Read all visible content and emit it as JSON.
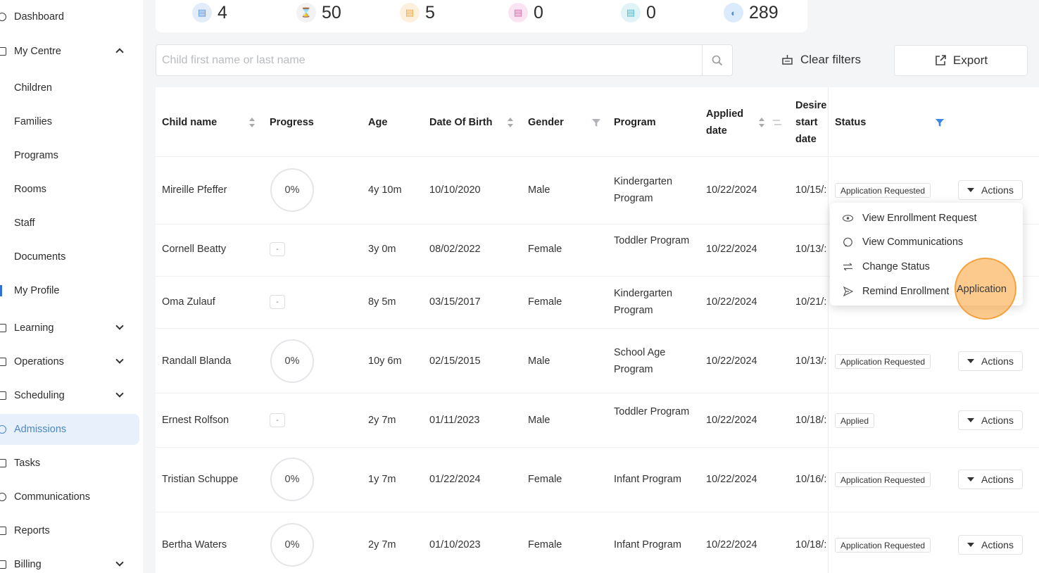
{
  "sidebar": {
    "items": [
      {
        "label": "Dashboard",
        "icon": "dashboard-icon"
      },
      {
        "label": "My Centre",
        "icon": "home-icon"
      },
      {
        "label": "Children"
      },
      {
        "label": "Families"
      },
      {
        "label": "Programs"
      },
      {
        "label": "Rooms"
      },
      {
        "label": "Staff"
      },
      {
        "label": "Documents"
      },
      {
        "label": "My Profile"
      },
      {
        "label": "Learning",
        "icon": "book-icon"
      },
      {
        "label": "Operations",
        "icon": "operations-icon"
      },
      {
        "label": "Scheduling",
        "icon": "calendar-icon"
      },
      {
        "label": "Admissions",
        "icon": "admissions-icon",
        "active": true
      },
      {
        "label": "Tasks",
        "icon": "tasks-icon"
      },
      {
        "label": "Communications",
        "icon": "communications-icon"
      },
      {
        "label": "Reports",
        "icon": "reports-icon"
      },
      {
        "label": "Billing",
        "icon": "billing-icon"
      }
    ]
  },
  "stats": [
    {
      "value": "4",
      "icon": "document-icon",
      "color": "#5b8fd9",
      "bg": "#e3edfa"
    },
    {
      "value": "50",
      "icon": "hourglass-icon",
      "color": "#666666",
      "bg": "#f2f2f2"
    },
    {
      "value": "5",
      "icon": "pending-doc-icon",
      "color": "#e8a84a",
      "bg": "#fdf1de"
    },
    {
      "value": "0",
      "icon": "rejected-doc-icon",
      "color": "#d46aa8",
      "bg": "#fbe4f1"
    },
    {
      "value": "0",
      "icon": "approved-doc-icon",
      "color": "#52b7c9",
      "bg": "#e0f4f7"
    },
    {
      "value": "289",
      "icon": "total-icon",
      "color": "#4a8fd8",
      "bg": "#dcebfb"
    }
  ],
  "search": {
    "placeholder": "Child first name or last name",
    "value": ""
  },
  "filters": {
    "clear_label": "Clear filters",
    "export_label": "Export"
  },
  "table": {
    "headers": {
      "child_name": "Child name",
      "progress": "Progress",
      "age": "Age",
      "dob": "Date Of Birth",
      "gender": "Gender",
      "program": "Program",
      "applied_date_l1": "Applied",
      "applied_date_l2": "date",
      "desired_l1": "Desire",
      "desired_l2": "start",
      "desired_l3": "date",
      "status": "Status"
    },
    "rows": [
      {
        "name": "Mireille Pfeffer",
        "progress": "0%",
        "age": "4y 10m",
        "dob": "10/10/2020",
        "gender": "Male",
        "program": "Kindergarten Program",
        "applied": "10/22/2024",
        "desired": "10/15/:",
        "status": "Application Requested",
        "actions": "Actions"
      },
      {
        "name": "Cornell Beatty",
        "progress": "-",
        "age": "3y 0m",
        "dob": "08/02/2022",
        "gender": "Female",
        "program": "Toddler Program",
        "applied": "10/22/2024",
        "desired": "10/13/:",
        "status": "",
        "actions": ""
      },
      {
        "name": "Oma Zulauf",
        "progress": "-",
        "age": "8y 5m",
        "dob": "03/15/2017",
        "gender": "Female",
        "program": "Kindergarten Program",
        "applied": "10/22/2024",
        "desired": "10/21/:",
        "status": "",
        "actions": ""
      },
      {
        "name": "Randall Blanda",
        "progress": "0%",
        "age": "10y 6m",
        "dob": "02/15/2015",
        "gender": "Male",
        "program": "School Age Program",
        "applied": "10/22/2024",
        "desired": "10/13/:",
        "status": "Application Requested",
        "actions": "Actions"
      },
      {
        "name": "Ernest Rolfson",
        "progress": "-",
        "age": "2y 7m",
        "dob": "01/11/2023",
        "gender": "Male",
        "program": "Toddler Program",
        "applied": "10/22/2024",
        "desired": "10/18/:",
        "status": "Applied",
        "actions": "Actions"
      },
      {
        "name": "Tristian Schuppe",
        "progress": "0%",
        "age": "1y 7m",
        "dob": "01/22/2024",
        "gender": "Female",
        "program": "Infant Program",
        "applied": "10/22/2024",
        "desired": "10/16/:",
        "status": "Application Requested",
        "actions": "Actions"
      },
      {
        "name": "Bertha Waters",
        "progress": "0%",
        "age": "2y 7m",
        "dob": "01/10/2023",
        "gender": "Female",
        "program": "Infant Program",
        "applied": "10/22/2024",
        "desired": "10/18/:",
        "status": "Application Requested",
        "actions": "Actions"
      }
    ]
  },
  "dropdown": {
    "items": [
      {
        "label": "View Enrollment Request",
        "icon": "eye-icon"
      },
      {
        "label": "View Communications",
        "icon": "chat-icon"
      },
      {
        "label": "Change Status",
        "icon": "swap-icon"
      },
      {
        "label": "Remind Enrollment",
        "icon": "send-icon"
      }
    ],
    "highlight_text": "Application"
  }
}
